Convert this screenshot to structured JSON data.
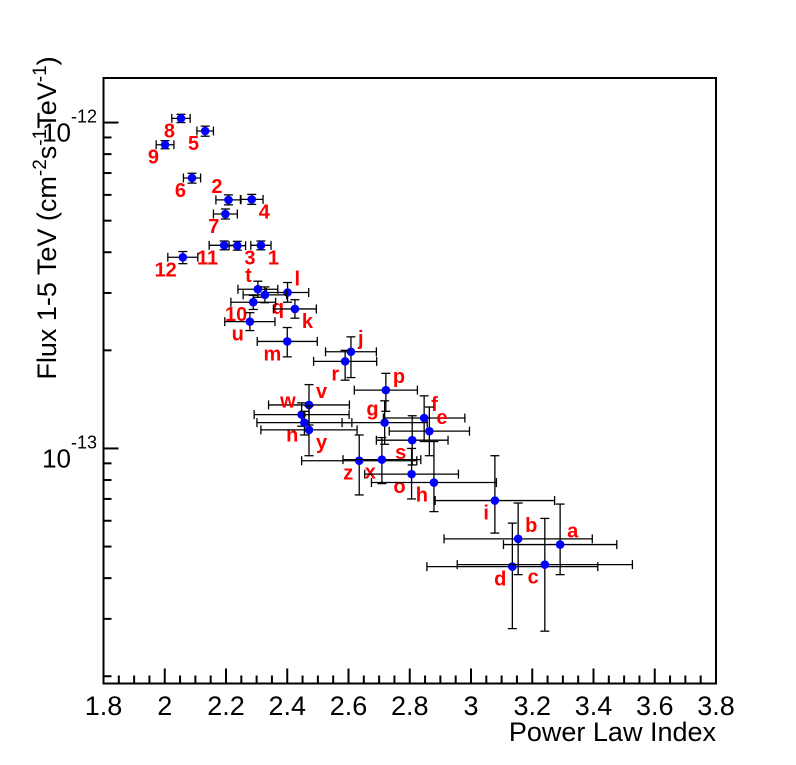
{
  "figure": {
    "background_color": "#ffffff",
    "frame_color": "#000000",
    "axis_text_color": "#000000"
  },
  "chart_data": {
    "type": "scatter",
    "title": "",
    "xlabel": "Power Law Index",
    "ylabel_plain": "Flux 1-5 TeV (cm-2s-1TeV-1)",
    "ylabel_parts": [
      {
        "text": "Flux 1-5 TeV (cm",
        "sup": false
      },
      {
        "text": "-2",
        "sup": true
      },
      {
        "text": "s",
        "sup": false
      },
      {
        "text": "-1",
        "sup": true
      },
      {
        "text": "TeV",
        "sup": false
      },
      {
        "text": "-1",
        "sup": true
      },
      {
        "text": ")",
        "sup": false
      }
    ],
    "xscale": "linear",
    "yscale": "log",
    "xlim": [
      1.8,
      3.8
    ],
    "ylim": [
      1.9e-14,
      1.37e-12
    ],
    "grid": false,
    "legend": null,
    "x_major_ticks": [
      1.8,
      2.0,
      2.2,
      2.4,
      2.6,
      2.8,
      3.0,
      3.2,
      3.4,
      3.6,
      3.8
    ],
    "x_tick_labels": [
      "1.8",
      "2",
      "2.2",
      "2.4",
      "2.6",
      "2.8",
      "3",
      "3.2",
      "3.4",
      "3.6",
      "3.8"
    ],
    "x_minor_step": 0.05,
    "y_major_ticks": [
      {
        "value": 1e-12,
        "label_base": "10",
        "label_exp": "-12"
      },
      {
        "value": 1e-13,
        "label_base": "10",
        "label_exp": "-13"
      }
    ],
    "y_minor_ticks": [
      9e-13,
      8e-13,
      7e-13,
      6e-13,
      5e-13,
      4e-13,
      3e-13,
      2e-13,
      9e-14,
      8e-14,
      7e-14,
      6e-14,
      5e-14,
      4e-14,
      3e-14,
      2e-14
    ],
    "marker": {
      "shape": "circle",
      "color": "#0000ff",
      "radius_px": 4.3
    },
    "error_bar_color": "#000000",
    "point_label_color": "#ff0000",
    "points": [
      {
        "label": "8",
        "x": 2.053,
        "y": 1.03e-12,
        "xerr": 0.03,
        "y_lo": 1e-12,
        "y_hi": 1.06e-12,
        "label_pos": "bl"
      },
      {
        "label": "5",
        "x": 2.132,
        "y": 9.42e-13,
        "xerr": 0.027,
        "y_lo": 9.08e-13,
        "y_hi": 9.75e-13,
        "label_pos": "bl"
      },
      {
        "label": "9",
        "x": 2.001,
        "y": 8.55e-13,
        "xerr": 0.029,
        "y_lo": 8.31e-13,
        "y_hi": 8.8e-13,
        "label_pos": "bl"
      },
      {
        "label": "6",
        "x": 2.089,
        "y": 6.76e-13,
        "xerr": 0.028,
        "y_lo": 6.52e-13,
        "y_hi": 6.99e-13,
        "label_pos": "bl"
      },
      {
        "label": "2",
        "x": 2.208,
        "y": 5.79e-13,
        "xerr": 0.041,
        "y_lo": 5.59e-13,
        "y_hi": 6e-13,
        "label_pos": "tl"
      },
      {
        "label": "4",
        "x": 2.284,
        "y": 5.81e-13,
        "xerr": 0.037,
        "y_lo": 5.61e-13,
        "y_hi": 6.02e-13,
        "label_pos": "br"
      },
      {
        "label": "7",
        "x": 2.198,
        "y": 5.24e-13,
        "xerr": 0.039,
        "y_lo": 5.06e-13,
        "y_hi": 5.43e-13,
        "label_pos": "bl"
      },
      {
        "label": "11",
        "x": 2.194,
        "y": 4.2e-13,
        "xerr": 0.049,
        "y_lo": 4.07e-13,
        "y_hi": 4.33e-13,
        "label_pos": "bl"
      },
      {
        "label": "3",
        "x": 2.237,
        "y": 4.19e-13,
        "xerr": 0.027,
        "y_lo": 4.06e-13,
        "y_hi": 4.32e-13,
        "label_pos": "br"
      },
      {
        "label": "1",
        "x": 2.314,
        "y": 4.2e-13,
        "xerr": 0.033,
        "y_lo": 4.07e-13,
        "y_hi": 4.33e-13,
        "label_pos": "br"
      },
      {
        "label": "12",
        "x": 2.059,
        "y": 3.86e-13,
        "xerr": 0.049,
        "y_lo": 3.69e-13,
        "y_hi": 4.02e-13,
        "label_pos": "bl"
      },
      {
        "label": "t",
        "x": 2.304,
        "y": 3.08e-13,
        "xerr": 0.065,
        "y_lo": 2.91e-13,
        "y_hi": 3.26e-13,
        "label_pos": "tl"
      },
      {
        "label": "l",
        "x": 2.401,
        "y": 3.01e-13,
        "xerr": 0.069,
        "y_lo": 2.81e-13,
        "y_hi": 3.23e-13,
        "label_pos": "tr"
      },
      {
        "label": "q",
        "x": 2.327,
        "y": 2.96e-13,
        "xerr": 0.071,
        "y_lo": 2.8e-13,
        "y_hi": 3.13e-13,
        "label_pos": "br"
      },
      {
        "label": "10",
        "x": 2.289,
        "y": 2.81e-13,
        "xerr": 0.073,
        "y_lo": 2.67e-13,
        "y_hi": 2.95e-13,
        "label_pos": "bl"
      },
      {
        "label": "k",
        "x": 2.425,
        "y": 2.68e-13,
        "xerr": 0.07,
        "y_lo": 2.51e-13,
        "y_hi": 2.86e-13,
        "label_pos": "br"
      },
      {
        "label": "u",
        "x": 2.278,
        "y": 2.45e-13,
        "xerr": 0.082,
        "y_lo": 2.3e-13,
        "y_hi": 2.61e-13,
        "label_pos": "bl"
      },
      {
        "label": "m",
        "x": 2.4,
        "y": 2.13e-13,
        "xerr": 0.098,
        "y_lo": 1.91e-13,
        "y_hi": 2.35e-13,
        "label_pos": "bl"
      },
      {
        "label": "j",
        "x": 2.608,
        "y": 1.98e-13,
        "xerr": 0.083,
        "y_lo": 1.65e-13,
        "y_hi": 2.2e-13,
        "label_pos": "tr"
      },
      {
        "label": "r",
        "x": 2.589,
        "y": 1.85e-13,
        "xerr": 0.103,
        "y_lo": 1.62e-13,
        "y_hi": 2e-13,
        "label_pos": "bl"
      },
      {
        "label": "p",
        "x": 2.722,
        "y": 1.51e-13,
        "xerr": 0.103,
        "y_lo": 1.3e-13,
        "y_hi": 1.7e-13,
        "label_pos": "tr"
      },
      {
        "label": "v",
        "x": 2.471,
        "y": 1.36e-13,
        "xerr": 0.132,
        "y_lo": 1.18e-13,
        "y_hi": 1.57e-13,
        "label_pos": "tr"
      },
      {
        "label": "w",
        "x": 2.447,
        "y": 1.27e-13,
        "xerr": 0.155,
        "y_lo": 1.17e-13,
        "y_hi": 1.38e-13,
        "label_pos": "tl"
      },
      {
        "label": "n",
        "x": 2.456,
        "y": 1.2e-13,
        "xerr": 0.155,
        "y_lo": 1.1e-13,
        "y_hi": 1.3e-13,
        "label_pos": "bl"
      },
      {
        "label": "y",
        "x": 2.471,
        "y": 1.14e-13,
        "xerr": 0.157,
        "y_lo": 9.5e-14,
        "y_hi": 1.35e-13,
        "label_pos": "br"
      },
      {
        "label": "g",
        "x": 2.718,
        "y": 1.2e-13,
        "xerr": 0.139,
        "y_lo": 1.03e-13,
        "y_hi": 1.4e-13,
        "label_pos": "tl"
      },
      {
        "label": "f",
        "x": 2.847,
        "y": 1.24e-13,
        "xerr": 0.133,
        "y_lo": 1.05e-13,
        "y_hi": 1.45e-13,
        "label_pos": "tr"
      },
      {
        "label": "e",
        "x": 2.864,
        "y": 1.13e-13,
        "xerr": 0.131,
        "y_lo": 9.5e-14,
        "y_hi": 1.34e-13,
        "label_pos": "tr"
      },
      {
        "label": "s",
        "x": 2.808,
        "y": 1.06e-13,
        "xerr": 0.117,
        "y_lo": 8.9e-14,
        "y_hi": 1.26e-13,
        "label_pos": "bl"
      },
      {
        "label": "z",
        "x": 2.635,
        "y": 9.17e-14,
        "xerr": 0.188,
        "y_lo": 7.2e-14,
        "y_hi": 1.1e-13,
        "label_pos": "bl"
      },
      {
        "label": "x",
        "x": 2.709,
        "y": 9.24e-14,
        "xerr": 0.127,
        "y_lo": 7.8e-14,
        "y_hi": 1.08e-13,
        "label_pos": "bl"
      },
      {
        "label": "o",
        "x": 2.806,
        "y": 8.34e-14,
        "xerr": 0.153,
        "y_lo": 7e-14,
        "y_hi": 1e-13,
        "label_pos": "bl"
      },
      {
        "label": "h",
        "x": 2.879,
        "y": 7.86e-14,
        "xerr": 0.204,
        "y_lo": 6.4e-14,
        "y_hi": 1.05e-13,
        "label_pos": "bl"
      },
      {
        "label": "i",
        "x": 3.078,
        "y": 6.92e-14,
        "xerr": 0.195,
        "y_lo": 5.5e-14,
        "y_hi": 9.5e-14,
        "label_pos": "bl"
      },
      {
        "label": "b",
        "x": 3.154,
        "y": 5.28e-14,
        "xerr": 0.242,
        "y_lo": 4.1e-14,
        "y_hi": 6.8e-14,
        "label_pos": "tr"
      },
      {
        "label": "a",
        "x": 3.291,
        "y": 5.07e-14,
        "xerr": 0.185,
        "y_lo": 4.1e-14,
        "y_hi": 6.75e-14,
        "label_pos": "tr"
      },
      {
        "label": "d",
        "x": 3.135,
        "y": 4.34e-14,
        "xerr": 0.279,
        "y_lo": 2.8e-14,
        "y_hi": 5.9e-14,
        "label_pos": "bl"
      },
      {
        "label": "c",
        "x": 3.241,
        "y": 4.4e-14,
        "xerr": 0.286,
        "y_lo": 2.75e-14,
        "y_hi": 6.1e-14,
        "label_pos": "bl"
      }
    ]
  }
}
